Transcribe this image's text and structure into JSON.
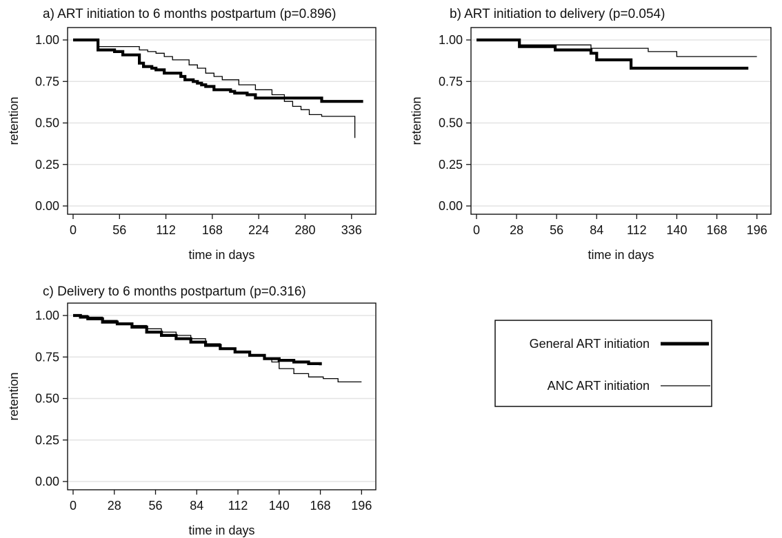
{
  "legend": {
    "items": [
      {
        "label": "General ART initiation",
        "style": "thick"
      },
      {
        "label": "ANC ART initiation",
        "style": "thin"
      }
    ]
  },
  "chart_data": [
    {
      "type": "line",
      "title": "a) ART initiation to 6 months postpartum (p=0.896)",
      "xlabel": "time in days",
      "ylabel": "retention",
      "xlim": [
        0,
        357
      ],
      "ylim": [
        0,
        1
      ],
      "xticks": [
        "0",
        "56",
        "112",
        "168",
        "224",
        "280",
        "336"
      ],
      "yticks": [
        "0.00",
        "0.25",
        "0.50",
        "0.75",
        "1.00"
      ],
      "grid": true,
      "series": [
        {
          "name": "General ART initiation",
          "style": "thick",
          "x": [
            0,
            30,
            30,
            45,
            50,
            60,
            65,
            80,
            85,
            95,
            100,
            110,
            115,
            130,
            135,
            145,
            150,
            155,
            160,
            170,
            175,
            190,
            195,
            210,
            220,
            300,
            350
          ],
          "y": [
            1.0,
            1.0,
            0.94,
            0.94,
            0.93,
            0.91,
            0.91,
            0.86,
            0.84,
            0.83,
            0.82,
            0.8,
            0.8,
            0.78,
            0.76,
            0.75,
            0.74,
            0.73,
            0.72,
            0.7,
            0.7,
            0.69,
            0.68,
            0.67,
            0.65,
            0.63,
            0.63
          ]
        },
        {
          "name": "ANC ART initiation",
          "style": "thin",
          "x": [
            0,
            30,
            30,
            70,
            80,
            90,
            100,
            110,
            120,
            140,
            150,
            160,
            170,
            180,
            200,
            220,
            240,
            255,
            265,
            275,
            285,
            300,
            340,
            340
          ],
          "y": [
            1.0,
            1.0,
            0.96,
            0.96,
            0.94,
            0.93,
            0.92,
            0.9,
            0.88,
            0.85,
            0.83,
            0.8,
            0.78,
            0.76,
            0.73,
            0.7,
            0.67,
            0.63,
            0.6,
            0.58,
            0.55,
            0.54,
            0.54,
            0.41
          ]
        }
      ]
    },
    {
      "type": "line",
      "title": "b) ART initiation to delivery (p=0.054)",
      "xlabel": "time in days",
      "ylabel": "retention",
      "xlim": [
        0,
        201
      ],
      "ylim": [
        0,
        1
      ],
      "xticks": [
        "0",
        "28",
        "56",
        "84",
        "112",
        "140",
        "168",
        "196"
      ],
      "yticks": [
        "0.00",
        "0.25",
        "0.50",
        "0.75",
        "1.00"
      ],
      "grid": true,
      "series": [
        {
          "name": "General ART initiation",
          "style": "thick",
          "x": [
            0,
            30,
            30,
            50,
            55,
            80,
            84,
            108,
            108,
            190
          ],
          "y": [
            1.0,
            1.0,
            0.96,
            0.96,
            0.94,
            0.92,
            0.88,
            0.88,
            0.83,
            0.83
          ]
        },
        {
          "name": "ANC ART initiation",
          "style": "thin",
          "x": [
            0,
            30,
            30,
            60,
            80,
            120,
            140,
            196
          ],
          "y": [
            1.0,
            1.0,
            0.97,
            0.97,
            0.95,
            0.93,
            0.9,
            0.9
          ]
        }
      ]
    },
    {
      "type": "line",
      "title": "c) Delivery to 6 months postpartum (p=0.316)",
      "xlabel": "time in days",
      "ylabel": "retention",
      "xlim": [
        0,
        201
      ],
      "ylim": [
        0,
        1
      ],
      "xticks": [
        "0",
        "28",
        "56",
        "84",
        "112",
        "140",
        "168",
        "196"
      ],
      "yticks": [
        "0.00",
        "0.25",
        "0.50",
        "0.75",
        "1.00"
      ],
      "grid": true,
      "series": [
        {
          "name": "General ART initiation",
          "style": "thick",
          "x": [
            0,
            5,
            10,
            20,
            30,
            40,
            50,
            60,
            70,
            80,
            90,
            100,
            110,
            120,
            130,
            140,
            150,
            160,
            168
          ],
          "y": [
            1.0,
            0.99,
            0.98,
            0.96,
            0.95,
            0.93,
            0.9,
            0.88,
            0.86,
            0.84,
            0.82,
            0.8,
            0.78,
            0.76,
            0.74,
            0.73,
            0.72,
            0.71,
            0.7
          ]
        },
        {
          "name": "ANC ART initiation",
          "style": "thin",
          "x": [
            0,
            10,
            20,
            30,
            40,
            50,
            60,
            70,
            80,
            90,
            100,
            110,
            120,
            130,
            135,
            140,
            150,
            160,
            170,
            180,
            196
          ],
          "y": [
            1.0,
            0.99,
            0.97,
            0.95,
            0.94,
            0.92,
            0.9,
            0.88,
            0.86,
            0.83,
            0.8,
            0.78,
            0.76,
            0.74,
            0.72,
            0.68,
            0.65,
            0.63,
            0.62,
            0.6,
            0.6
          ]
        }
      ]
    }
  ]
}
